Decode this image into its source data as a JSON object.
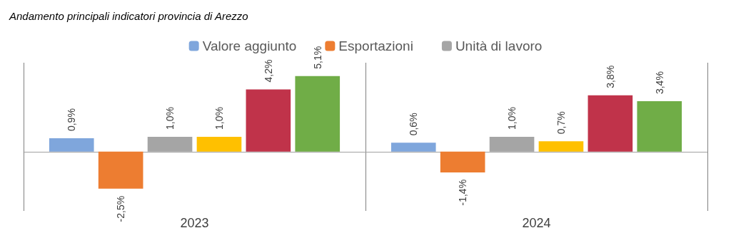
{
  "chart_data": {
    "type": "bar",
    "title": "Andamento principali indicatori provincia di Arezzo",
    "categories": [
      "2023",
      "2024"
    ],
    "series": [
      {
        "name": "Valore aggiunto",
        "color": "#7fa6dc",
        "values": [
          0.9,
          0.6
        ],
        "value_labels": [
          "0,9%",
          "0,6%"
        ]
      },
      {
        "name": "Esportazioni",
        "color": "#ed7d31",
        "values": [
          -2.5,
          -1.4
        ],
        "value_labels": [
          "-2,5%",
          "-1,4%"
        ]
      },
      {
        "name": "Unità di lavoro",
        "color": "#a5a5a5",
        "values": [
          1.0,
          1.0
        ],
        "value_labels": [
          "1,0%",
          "1,0%"
        ]
      },
      {
        "color": "#ffc000",
        "values": [
          1.0,
          0.7
        ],
        "value_labels": [
          "1,0%",
          "0,7%"
        ]
      },
      {
        "color": "#c0334a",
        "values": [
          4.2,
          3.8
        ],
        "value_labels": [
          "4,2%",
          "3,8%"
        ]
      },
      {
        "color": "#70ad47",
        "values": [
          5.1,
          3.4
        ],
        "value_labels": [
          "5,1%",
          "3,4%"
        ]
      }
    ],
    "legend": "top",
    "grid": "x"
  }
}
